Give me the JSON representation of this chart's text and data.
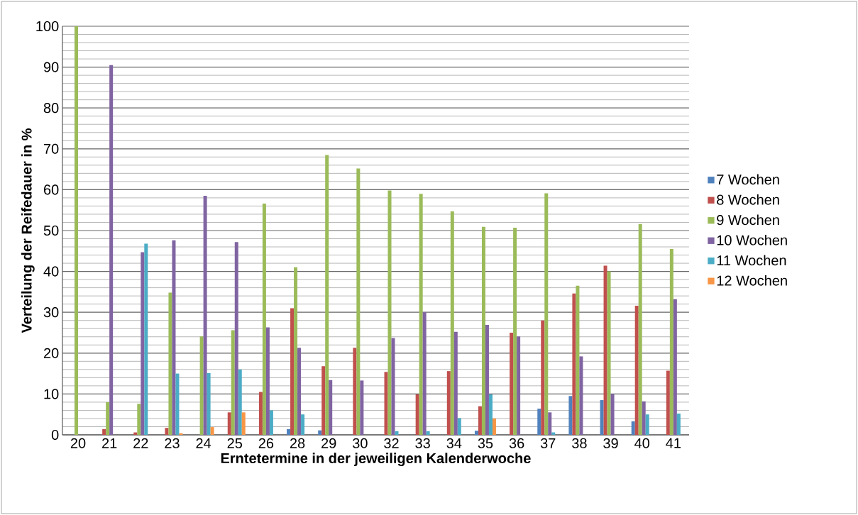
{
  "chart_data": {
    "type": "bar",
    "xlabel": "Erntetermine in der jeweiligen Kalenderwoche",
    "ylabel": "Verteilung der Reifedauer in %",
    "categories": [
      "20",
      "21",
      "22",
      "23",
      "24",
      "25",
      "26",
      "28",
      "29",
      "30",
      "32",
      "33",
      "34",
      "35",
      "36",
      "37",
      "38",
      "39",
      "40",
      "41"
    ],
    "series": [
      {
        "name": "7 Wochen",
        "color": "#4f81bd",
        "values": [
          0,
          0,
          0,
          0,
          0,
          0,
          0,
          1.4,
          1.1,
          0,
          0,
          0,
          0,
          1,
          0,
          6.4,
          9.5,
          8.5,
          3.3,
          0
        ]
      },
      {
        "name": "8 Wochen",
        "color": "#c0504d",
        "values": [
          0,
          1.4,
          0.6,
          1.7,
          0,
          5.5,
          10.5,
          31,
          16.8,
          21.3,
          15.4,
          9.9,
          15.6,
          7,
          25,
          28,
          34.6,
          41.4,
          31.6,
          15.7
        ]
      },
      {
        "name": "9 Wochen",
        "color": "#9bbb59",
        "values": [
          100,
          8,
          7.6,
          34.8,
          24.1,
          25.6,
          56.6,
          41,
          68.5,
          65.2,
          59.8,
          59,
          54.7,
          50.9,
          50.7,
          59.1,
          36.5,
          40,
          51.6,
          45.5
        ]
      },
      {
        "name": "10 Wochen",
        "color": "#8064a2",
        "values": [
          0,
          90.5,
          44.7,
          47.6,
          58.5,
          47.2,
          26.3,
          21.3,
          13.4,
          13.3,
          23.7,
          30,
          25.2,
          26.9,
          24.1,
          5.5,
          19.2,
          10,
          8.2,
          33.2
        ]
      },
      {
        "name": "11 Wochen",
        "color": "#4bacc6",
        "values": [
          0,
          0,
          46.8,
          15,
          15.1,
          16,
          6,
          5,
          0,
          0,
          0.9,
          0.9,
          4.1,
          9.9,
          0,
          0.6,
          0,
          0,
          5,
          5.2
        ]
      },
      {
        "name": "12 Wochen",
        "color": "#f79646",
        "values": [
          0,
          0,
          0,
          0.4,
          1.9,
          5.5,
          0,
          0,
          0,
          0,
          0,
          0,
          0,
          4,
          0,
          0,
          0,
          0,
          0,
          0
        ]
      }
    ],
    "ylim": [
      0,
      100
    ],
    "yticks": [
      0,
      10,
      20,
      30,
      40,
      50,
      60,
      70,
      80,
      90,
      100
    ],
    "grid": "y",
    "legend": "right"
  }
}
